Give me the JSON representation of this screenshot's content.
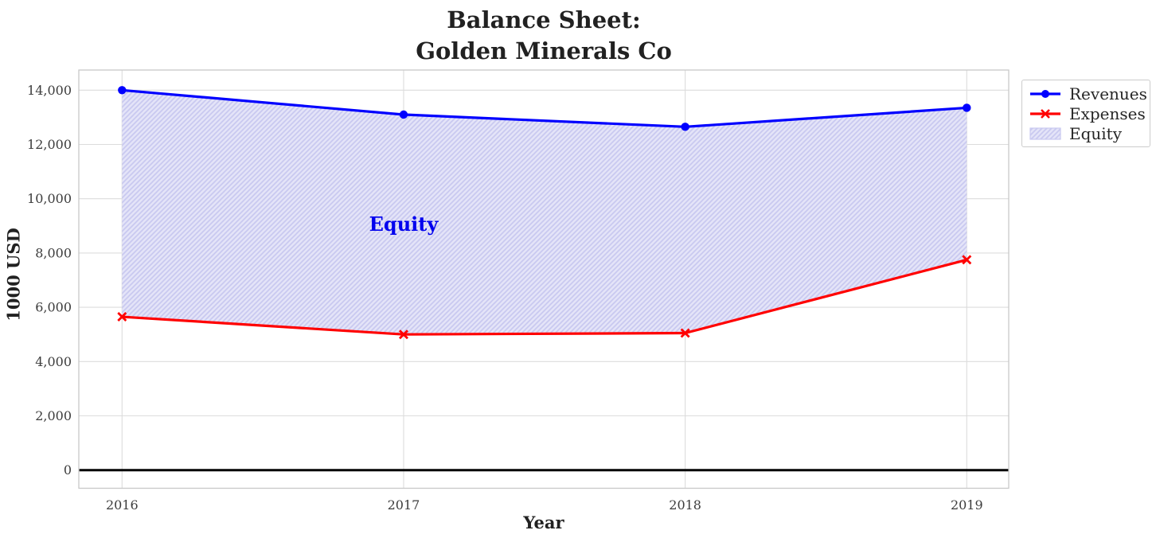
{
  "chart_data": {
    "type": "area",
    "title": "Balance Sheet: Golden Minerals Co",
    "title_lines": [
      "Balance Sheet:",
      "Golden Minerals Co"
    ],
    "xlabel": "Year",
    "ylabel": "1000 USD",
    "categories": [
      "2016",
      "2017",
      "2018",
      "2019"
    ],
    "series": [
      {
        "name": "Revenues",
        "color": "#0000ff",
        "marker": "circle",
        "values": [
          14000,
          13100,
          12650,
          13350
        ]
      },
      {
        "name": "Expenses",
        "color": "#ff0000",
        "marker": "x",
        "values": [
          5650,
          5000,
          5050,
          7750
        ]
      }
    ],
    "area": {
      "name": "Equity",
      "between": [
        "Revenues",
        "Expenses"
      ],
      "fill_color": "#e4e4f8",
      "hatch_color": "#c9c9f0",
      "hatch_style": "///",
      "annotation": {
        "text": "Equity",
        "color": "#0000ee",
        "at_category": "2017",
        "at_value": 9050
      }
    },
    "y_axis": {
      "tick_values": [
        0,
        2000,
        4000,
        6000,
        8000,
        10000,
        12000,
        14000
      ],
      "tick_labels": [
        "0",
        "2,000",
        "4,000",
        "6,000",
        "8,000",
        "10,000",
        "12,000",
        "14,000"
      ],
      "range": [
        -700,
        14750
      ]
    },
    "grid": true,
    "grid_color": "#dcdcdc",
    "zero_line_color": "#000000",
    "legend": {
      "location": "outside-top-right",
      "entries": [
        "Revenues",
        "Expenses",
        "Equity"
      ]
    }
  }
}
